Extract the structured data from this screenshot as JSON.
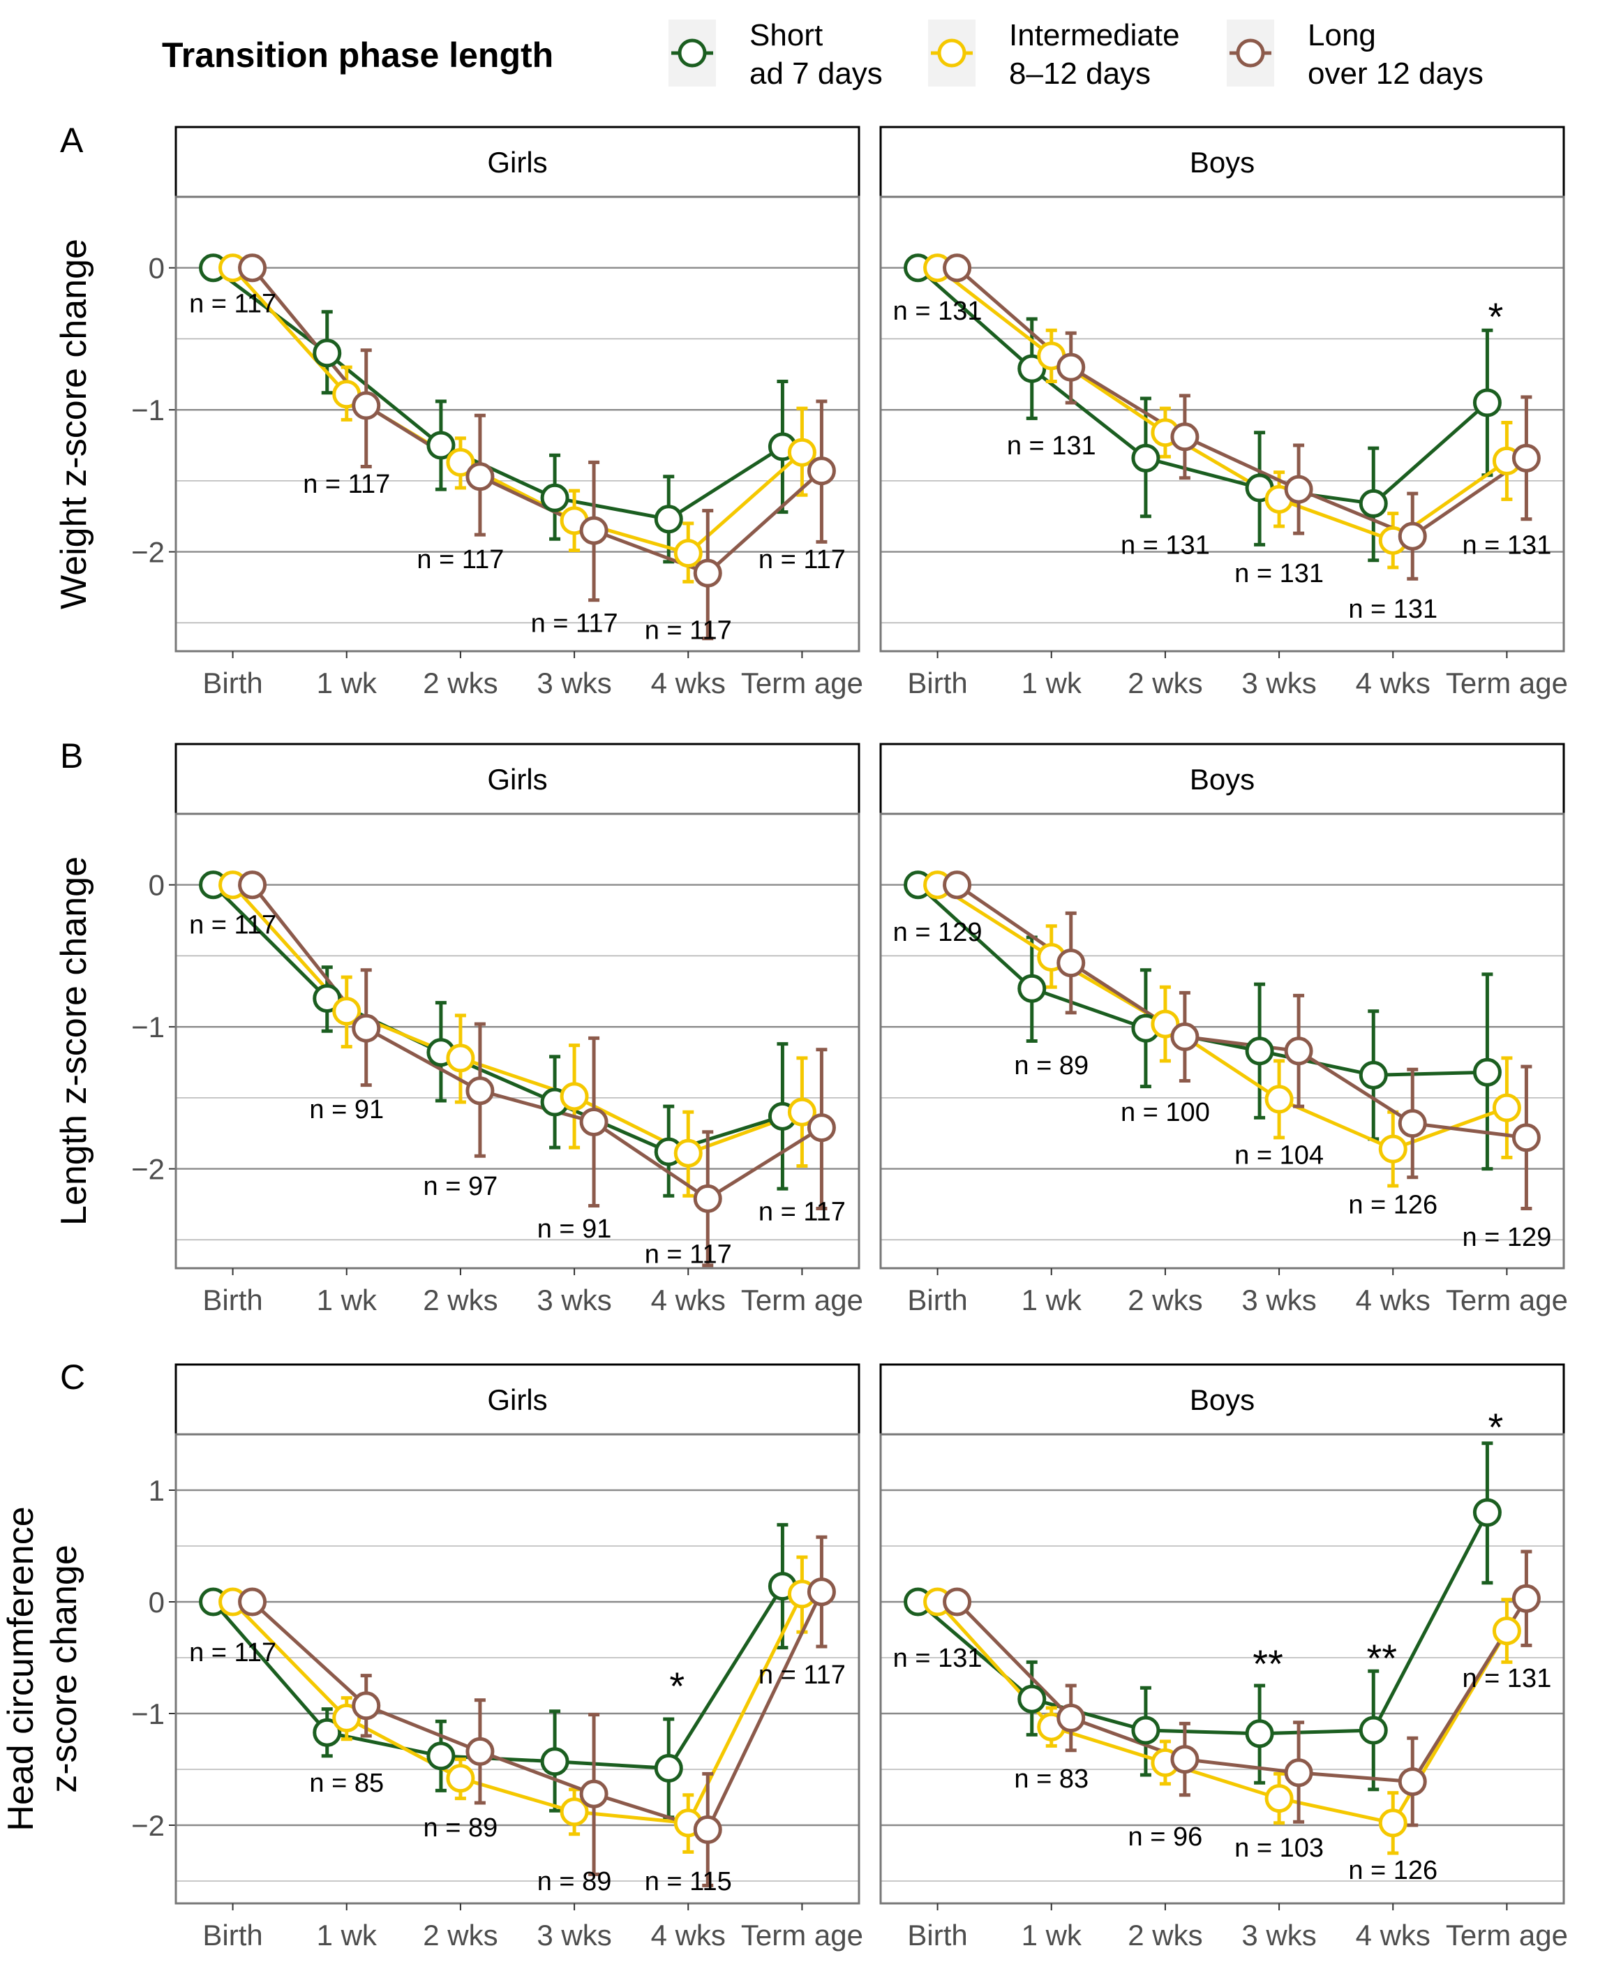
{
  "legend": {
    "title": "Transition phase length",
    "groups": [
      {
        "key": "short",
        "line1": "Short",
        "line2": "ad 7 days",
        "color": "#1b5e20"
      },
      {
        "key": "intermediate",
        "line1": "Intermediate",
        "line2": "8–12 days",
        "color": "#f5c800"
      },
      {
        "key": "long",
        "line1": "Long",
        "line2": "over 12 days",
        "color": "#8c5a4b"
      }
    ]
  },
  "chart_data": [
    {
      "type": "line",
      "panel": "A",
      "ylabel_lines": [
        "Weight z-score change"
      ],
      "ylim": [
        -2.7,
        0.5
      ],
      "yticks": [
        0,
        -1,
        -2
      ],
      "ytick_labels": [
        "0",
        "−1",
        "−2"
      ],
      "categories": [
        "Birth",
        "1 wk",
        "2 wks",
        "3 wks",
        "4 wks",
        "Term age"
      ],
      "facets": [
        {
          "strip": "Girls",
          "series": [
            {
              "name": "Short",
              "values": [
                0,
                -0.6,
                -1.25,
                -1.62,
                -1.77,
                -1.26
              ],
              "lower": [
                0,
                -0.88,
                -1.56,
                -1.91,
                -2.07,
                -1.72
              ],
              "upper": [
                0,
                -0.31,
                -0.94,
                -1.32,
                -1.47,
                -0.8
              ]
            },
            {
              "name": "Intermediate",
              "values": [
                0,
                -0.89,
                -1.37,
                -1.78,
                -2.01,
                -1.3
              ],
              "lower": [
                0,
                -1.07,
                -1.55,
                -1.99,
                -2.21,
                -1.6
              ],
              "upper": [
                0,
                -0.7,
                -1.2,
                -1.57,
                -1.8,
                -0.99
              ]
            },
            {
              "name": "Long",
              "values": [
                0,
                -0.97,
                -1.47,
                -1.85,
                -2.15,
                -1.43
              ],
              "lower": [
                0,
                -1.4,
                -1.88,
                -2.34,
                -2.61,
                -1.93
              ],
              "upper": [
                0,
                -0.58,
                -1.04,
                -1.37,
                -1.71,
                -0.94
              ]
            }
          ],
          "annotations": [
            {
              "cat": 0,
              "y": -0.25,
              "label": "n = 117"
            },
            {
              "cat": 1,
              "y": -1.52,
              "label": "n = 117"
            },
            {
              "cat": 2,
              "y": -2.05,
              "label": "n = 117"
            },
            {
              "cat": 3,
              "y": -2.5,
              "label": "n = 117"
            },
            {
              "cat": 4,
              "y": -2.55,
              "label": "n = 117"
            },
            {
              "cat": 5,
              "y": -2.05,
              "label": "n = 117"
            }
          ],
          "stars": []
        },
        {
          "strip": "Boys",
          "series": [
            {
              "name": "Short",
              "values": [
                0,
                -0.71,
                -1.34,
                -1.55,
                -1.66,
                -0.95
              ],
              "lower": [
                0,
                -1.06,
                -1.75,
                -1.95,
                -2.06,
                -1.46
              ],
              "upper": [
                0,
                -0.36,
                -0.92,
                -1.16,
                -1.27,
                -0.44
              ]
            },
            {
              "name": "Intermediate",
              "values": [
                0,
                -0.62,
                -1.16,
                -1.63,
                -1.92,
                -1.36
              ],
              "lower": [
                0,
                -0.8,
                -1.33,
                -1.82,
                -2.11,
                -1.63
              ],
              "upper": [
                0,
                -0.44,
                -0.99,
                -1.44,
                -1.73,
                -1.09
              ]
            },
            {
              "name": "Long",
              "values": [
                0,
                -0.7,
                -1.19,
                -1.56,
                -1.89,
                -1.34
              ],
              "lower": [
                0,
                -0.95,
                -1.48,
                -1.87,
                -2.19,
                -1.77
              ],
              "upper": [
                0,
                -0.46,
                -0.9,
                -1.25,
                -1.59,
                -0.91
              ]
            }
          ],
          "annotations": [
            {
              "cat": 0,
              "y": -0.3,
              "label": "n = 131"
            },
            {
              "cat": 1,
              "y": -1.25,
              "label": "n = 131"
            },
            {
              "cat": 2,
              "y": -1.95,
              "label": "n = 131"
            },
            {
              "cat": 3,
              "y": -2.15,
              "label": "n = 131"
            },
            {
              "cat": 4,
              "y": -2.4,
              "label": "n = 131"
            },
            {
              "cat": 5,
              "y": -1.95,
              "label": "n = 131"
            }
          ],
          "stars": [
            {
              "cat": 5,
              "y": -0.3,
              "label": "*"
            }
          ]
        }
      ]
    },
    {
      "type": "line",
      "panel": "B",
      "ylabel_lines": [
        "Length z-score change"
      ],
      "ylim": [
        -2.7,
        0.5
      ],
      "yticks": [
        0,
        -1,
        -2
      ],
      "ytick_labels": [
        "0",
        "−1",
        "−2"
      ],
      "categories": [
        "Birth",
        "1 wk",
        "2 wks",
        "3 wks",
        "4 wks",
        "Term age"
      ],
      "facets": [
        {
          "strip": "Girls",
          "series": [
            {
              "name": "Short",
              "values": [
                0,
                -0.8,
                -1.18,
                -1.53,
                -1.88,
                -1.63
              ],
              "lower": [
                0,
                -1.03,
                -1.52,
                -1.85,
                -2.19,
                -2.14
              ],
              "upper": [
                0,
                -0.58,
                -0.83,
                -1.21,
                -1.56,
                -1.12
              ]
            },
            {
              "name": "Intermediate",
              "values": [
                0,
                -0.89,
                -1.22,
                -1.49,
                -1.89,
                -1.6
              ],
              "lower": [
                0,
                -1.14,
                -1.53,
                -1.85,
                -2.19,
                -1.98
              ],
              "upper": [
                0,
                -0.65,
                -0.92,
                -1.13,
                -1.6,
                -1.22
              ]
            },
            {
              "name": "Long",
              "values": [
                0,
                -1.01,
                -1.45,
                -1.67,
                -2.21,
                -1.71
              ],
              "lower": [
                0,
                -1.41,
                -1.91,
                -2.26,
                -2.68,
                -2.28
              ],
              "upper": [
                0,
                -0.6,
                -0.98,
                -1.08,
                -1.74,
                -1.16
              ]
            }
          ],
          "annotations": [
            {
              "cat": 0,
              "y": -0.28,
              "label": "n = 117"
            },
            {
              "cat": 1,
              "y": -1.58,
              "label": "n = 91"
            },
            {
              "cat": 2,
              "y": -2.12,
              "label": "n = 97"
            },
            {
              "cat": 3,
              "y": -2.42,
              "label": "n = 91"
            },
            {
              "cat": 4,
              "y": -2.6,
              "label": "n = 117"
            },
            {
              "cat": 5,
              "y": -2.3,
              "label": "n = 117"
            }
          ],
          "stars": []
        },
        {
          "strip": "Boys",
          "series": [
            {
              "name": "Short",
              "values": [
                0,
                -0.73,
                -1.01,
                -1.17,
                -1.34,
                -1.32
              ],
              "lower": [
                0,
                -1.1,
                -1.42,
                -1.64,
                -1.79,
                -2.0
              ],
              "upper": [
                0,
                -0.37,
                -0.6,
                -0.7,
                -0.89,
                -0.63
              ]
            },
            {
              "name": "Intermediate",
              "values": [
                0,
                -0.51,
                -0.98,
                -1.51,
                -1.86,
                -1.57
              ],
              "lower": [
                0,
                -0.72,
                -1.24,
                -1.78,
                -2.12,
                -1.92
              ],
              "upper": [
                0,
                -0.29,
                -0.72,
                -1.24,
                -1.6,
                -1.22
              ]
            },
            {
              "name": "Long",
              "values": [
                0,
                -0.55,
                -1.07,
                -1.17,
                -1.68,
                -1.78
              ],
              "lower": [
                0,
                -0.9,
                -1.38,
                -1.56,
                -2.06,
                -2.28
              ],
              "upper": [
                0,
                -0.2,
                -0.76,
                -0.78,
                -1.3,
                -1.28
              ]
            }
          ],
          "annotations": [
            {
              "cat": 0,
              "y": -0.33,
              "label": "n = 129"
            },
            {
              "cat": 1,
              "y": -1.27,
              "label": "n = 89"
            },
            {
              "cat": 2,
              "y": -1.6,
              "label": "n = 100"
            },
            {
              "cat": 3,
              "y": -1.9,
              "label": "n = 104"
            },
            {
              "cat": 4,
              "y": -2.25,
              "label": "n = 126"
            },
            {
              "cat": 5,
              "y": -2.48,
              "label": "n = 129"
            }
          ],
          "stars": []
        }
      ]
    },
    {
      "type": "line",
      "panel": "C",
      "ylabel_lines": [
        "Head circumference",
        "z-score change"
      ],
      "ylim": [
        -2.7,
        1.5
      ],
      "yticks": [
        1,
        0,
        -1,
        -2
      ],
      "ytick_labels": [
        "1",
        "0",
        "−1",
        "−2"
      ],
      "categories": [
        "Birth",
        "1 wk",
        "2 wks",
        "3 wks",
        "4 wks",
        "Term age"
      ],
      "facets": [
        {
          "strip": "Girls",
          "series": [
            {
              "name": "Short",
              "values": [
                0,
                -1.17,
                -1.38,
                -1.43,
                -1.49,
                0.14
              ],
              "lower": [
                0,
                -1.38,
                -1.69,
                -1.87,
                -1.93,
                -0.41
              ],
              "upper": [
                0,
                -0.96,
                -1.07,
                -0.98,
                -1.05,
                0.69
              ]
            },
            {
              "name": "Intermediate",
              "values": [
                0,
                -1.04,
                -1.58,
                -1.88,
                -1.98,
                0.07
              ],
              "lower": [
                0,
                -1.23,
                -1.76,
                -2.08,
                -2.24,
                -0.27
              ],
              "upper": [
                0,
                -0.86,
                -1.41,
                -1.68,
                -1.73,
                0.4
              ]
            },
            {
              "name": "Long",
              "values": [
                0,
                -0.93,
                -1.34,
                -1.72,
                -2.04,
                0.09
              ],
              "lower": [
                0,
                -1.2,
                -1.8,
                -2.44,
                -2.54,
                -0.4
              ],
              "upper": [
                0,
                -0.66,
                -0.88,
                -1.01,
                -1.54,
                0.58
              ]
            }
          ],
          "annotations": [
            {
              "cat": 0,
              "y": -0.45,
              "label": "n = 117"
            },
            {
              "cat": 1,
              "y": -1.62,
              "label": "n = 85"
            },
            {
              "cat": 2,
              "y": -2.02,
              "label": "n = 89"
            },
            {
              "cat": 3,
              "y": -2.5,
              "label": "n = 89"
            },
            {
              "cat": 4,
              "y": -2.5,
              "label": "n = 115"
            },
            {
              "cat": 5,
              "y": -0.65,
              "label": "n = 117"
            }
          ],
          "stars": [
            {
              "cat": 4,
              "y": -0.7,
              "label": "*"
            }
          ]
        },
        {
          "strip": "Boys",
          "series": [
            {
              "name": "Short",
              "values": [
                0,
                -0.87,
                -1.15,
                -1.18,
                -1.15,
                0.8
              ],
              "lower": [
                0,
                -1.19,
                -1.55,
                -1.62,
                -1.68,
                0.17
              ],
              "upper": [
                0,
                -0.54,
                -0.77,
                -0.75,
                -0.62,
                1.42
              ]
            },
            {
              "name": "Intermediate",
              "values": [
                0,
                -1.12,
                -1.44,
                -1.76,
                -1.98,
                -0.26
              ],
              "lower": [
                0,
                -1.29,
                -1.63,
                -1.98,
                -2.25,
                -0.54
              ],
              "upper": [
                0,
                -0.95,
                -1.25,
                -1.54,
                -1.71,
                0.02
              ]
            },
            {
              "name": "Long",
              "values": [
                0,
                -1.04,
                -1.41,
                -1.53,
                -1.61,
                0.03
              ],
              "lower": [
                0,
                -1.33,
                -1.73,
                -1.97,
                -2.0,
                -0.39
              ],
              "upper": [
                0,
                -0.75,
                -1.09,
                -1.08,
                -1.22,
                0.45
              ]
            }
          ],
          "annotations": [
            {
              "cat": 0,
              "y": -0.5,
              "label": "n = 131"
            },
            {
              "cat": 1,
              "y": -1.58,
              "label": "n = 83"
            },
            {
              "cat": 2,
              "y": -2.1,
              "label": "n = 96"
            },
            {
              "cat": 3,
              "y": -2.2,
              "label": "n = 103"
            },
            {
              "cat": 4,
              "y": -2.4,
              "label": "n = 126"
            },
            {
              "cat": 5,
              "y": -0.68,
              "label": "n = 131"
            }
          ],
          "stars": [
            {
              "cat": 3,
              "y": -0.5,
              "label": "**"
            },
            {
              "cat": 4,
              "y": -0.45,
              "label": "**"
            },
            {
              "cat": 5,
              "y": 1.62,
              "label": "*"
            }
          ]
        }
      ]
    }
  ]
}
